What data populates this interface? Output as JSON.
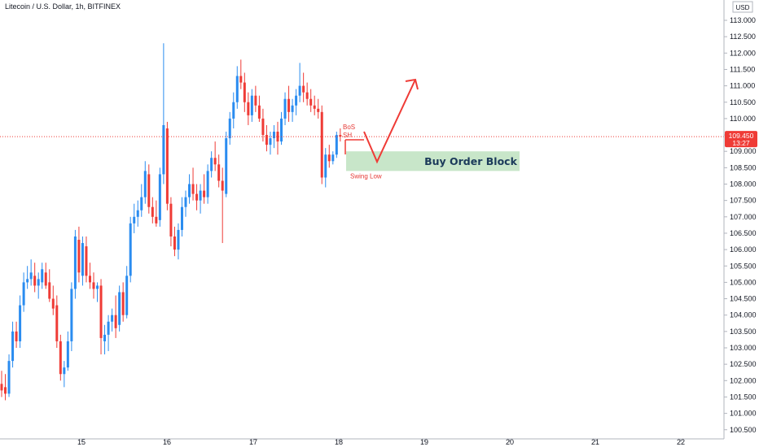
{
  "chart_data": {
    "type": "candlestick",
    "title": "Litecoin / U.S. Dollar, 1h, BITFINEX",
    "currency": "USD",
    "x_ticks": [
      "15",
      "16",
      "17",
      "18",
      "19",
      "20",
      "21",
      "22"
    ],
    "y_ticks": [
      "100.500",
      "101.000",
      "101.500",
      "102.000",
      "102.500",
      "103.000",
      "103.500",
      "104.000",
      "104.500",
      "105.000",
      "105.500",
      "106.000",
      "106.500",
      "107.000",
      "107.500",
      "108.000",
      "108.500",
      "109.000",
      "109.500",
      "110.000",
      "110.500",
      "111.000",
      "111.500",
      "112.000",
      "112.500",
      "113.000"
    ],
    "ylim": [
      100.25,
      113.55
    ],
    "last_price": "109.450",
    "last_price_value": 109.45,
    "countdown": "13:27",
    "colors": {
      "up": "#2a8cf0",
      "down": "#ef3b36",
      "zone": "#c8e6c9",
      "annotation": "#ef3b36",
      "grid": "#b0b4bd"
    },
    "candles": [
      {
        "t": 0,
        "o": 101.9,
        "h": 102.3,
        "l": 101.5,
        "c": 101.7
      },
      {
        "t": 1,
        "o": 101.8,
        "h": 102.2,
        "l": 101.4,
        "c": 101.6
      },
      {
        "t": 2,
        "o": 101.6,
        "h": 102.8,
        "l": 101.5,
        "c": 102.6
      },
      {
        "t": 3,
        "o": 102.6,
        "h": 103.8,
        "l": 102.4,
        "c": 103.5
      },
      {
        "t": 4,
        "o": 103.5,
        "h": 103.8,
        "l": 103.0,
        "c": 103.2
      },
      {
        "t": 5,
        "o": 103.2,
        "h": 104.6,
        "l": 103.0,
        "c": 104.3
      },
      {
        "t": 6,
        "o": 104.3,
        "h": 105.3,
        "l": 104.1,
        "c": 105.0
      },
      {
        "t": 7,
        "o": 105.0,
        "h": 105.5,
        "l": 104.8,
        "c": 105.1
      },
      {
        "t": 8,
        "o": 105.1,
        "h": 105.7,
        "l": 104.9,
        "c": 105.3
      },
      {
        "t": 9,
        "o": 105.2,
        "h": 105.6,
        "l": 104.7,
        "c": 104.9
      },
      {
        "t": 10,
        "o": 104.9,
        "h": 105.3,
        "l": 104.5,
        "c": 105.1
      },
      {
        "t": 11,
        "o": 105.0,
        "h": 105.6,
        "l": 104.8,
        "c": 105.4
      },
      {
        "t": 12,
        "o": 105.3,
        "h": 105.6,
        "l": 104.8,
        "c": 104.9
      },
      {
        "t": 13,
        "o": 105.0,
        "h": 105.4,
        "l": 104.4,
        "c": 104.5
      },
      {
        "t": 14,
        "o": 104.5,
        "h": 104.9,
        "l": 104.0,
        "c": 104.2
      },
      {
        "t": 15,
        "o": 104.3,
        "h": 104.6,
        "l": 103.0,
        "c": 103.2
      },
      {
        "t": 16,
        "o": 103.2,
        "h": 103.4,
        "l": 102.0,
        "c": 102.2
      },
      {
        "t": 17,
        "o": 102.2,
        "h": 102.6,
        "l": 101.8,
        "c": 102.4
      },
      {
        "t": 18,
        "o": 102.4,
        "h": 103.5,
        "l": 102.3,
        "c": 103.2
      },
      {
        "t": 19,
        "o": 103.2,
        "h": 105.0,
        "l": 102.9,
        "c": 104.8
      },
      {
        "t": 20,
        "o": 104.8,
        "h": 106.6,
        "l": 104.5,
        "c": 106.4
      },
      {
        "t": 21,
        "o": 106.3,
        "h": 106.7,
        "l": 105.0,
        "c": 105.3
      },
      {
        "t": 22,
        "o": 105.2,
        "h": 106.4,
        "l": 104.9,
        "c": 106.2
      },
      {
        "t": 23,
        "o": 106.1,
        "h": 106.4,
        "l": 105.0,
        "c": 105.2
      },
      {
        "t": 24,
        "o": 105.2,
        "h": 105.6,
        "l": 104.8,
        "c": 105.0
      },
      {
        "t": 25,
        "o": 105.0,
        "h": 105.3,
        "l": 104.5,
        "c": 104.8
      },
      {
        "t": 26,
        "o": 104.8,
        "h": 105.0,
        "l": 104.4,
        "c": 104.9
      },
      {
        "t": 27,
        "o": 104.9,
        "h": 105.1,
        "l": 102.8,
        "c": 103.3
      },
      {
        "t": 28,
        "o": 103.2,
        "h": 103.7,
        "l": 102.8,
        "c": 103.4
      },
      {
        "t": 29,
        "o": 103.4,
        "h": 104.0,
        "l": 102.9,
        "c": 103.8
      },
      {
        "t": 30,
        "o": 103.8,
        "h": 104.2,
        "l": 103.5,
        "c": 104.0
      },
      {
        "t": 31,
        "o": 104.0,
        "h": 104.6,
        "l": 103.3,
        "c": 103.6
      },
      {
        "t": 32,
        "o": 103.7,
        "h": 104.9,
        "l": 103.5,
        "c": 104.7
      },
      {
        "t": 33,
        "o": 104.7,
        "h": 105.0,
        "l": 103.8,
        "c": 104.0
      },
      {
        "t": 34,
        "o": 104.0,
        "h": 105.5,
        "l": 103.9,
        "c": 105.2
      },
      {
        "t": 35,
        "o": 105.2,
        "h": 107.0,
        "l": 105.0,
        "c": 106.8
      },
      {
        "t": 36,
        "o": 106.8,
        "h": 107.4,
        "l": 106.5,
        "c": 107.0
      },
      {
        "t": 37,
        "o": 107.0,
        "h": 107.5,
        "l": 106.7,
        "c": 107.2
      },
      {
        "t": 38,
        "o": 107.2,
        "h": 108.0,
        "l": 107.0,
        "c": 107.6
      },
      {
        "t": 39,
        "o": 107.6,
        "h": 108.7,
        "l": 107.4,
        "c": 108.4
      },
      {
        "t": 40,
        "o": 108.3,
        "h": 108.6,
        "l": 107.1,
        "c": 107.3
      },
      {
        "t": 41,
        "o": 107.3,
        "h": 107.6,
        "l": 106.8,
        "c": 107.0
      },
      {
        "t": 42,
        "o": 107.0,
        "h": 107.5,
        "l": 106.7,
        "c": 106.8
      },
      {
        "t": 43,
        "o": 106.9,
        "h": 108.5,
        "l": 106.7,
        "c": 108.3
      },
      {
        "t": 44,
        "o": 108.3,
        "h": 112.3,
        "l": 108.0,
        "c": 109.8
      },
      {
        "t": 45,
        "o": 109.7,
        "h": 109.9,
        "l": 107.2,
        "c": 107.4
      },
      {
        "t": 46,
        "o": 107.4,
        "h": 107.6,
        "l": 106.1,
        "c": 106.4
      },
      {
        "t": 47,
        "o": 106.4,
        "h": 106.7,
        "l": 105.8,
        "c": 106.0
      },
      {
        "t": 48,
        "o": 106.0,
        "h": 106.8,
        "l": 105.7,
        "c": 106.6
      },
      {
        "t": 49,
        "o": 106.6,
        "h": 107.6,
        "l": 106.4,
        "c": 107.3
      },
      {
        "t": 50,
        "o": 107.3,
        "h": 107.8,
        "l": 107.0,
        "c": 107.6
      },
      {
        "t": 51,
        "o": 107.6,
        "h": 108.3,
        "l": 107.4,
        "c": 108.0
      },
      {
        "t": 52,
        "o": 108.0,
        "h": 108.5,
        "l": 107.5,
        "c": 107.7
      },
      {
        "t": 53,
        "o": 107.7,
        "h": 108.0,
        "l": 107.2,
        "c": 107.5
      },
      {
        "t": 54,
        "o": 107.5,
        "h": 108.0,
        "l": 107.1,
        "c": 107.8
      },
      {
        "t": 55,
        "o": 107.8,
        "h": 108.3,
        "l": 107.4,
        "c": 107.6
      },
      {
        "t": 56,
        "o": 107.6,
        "h": 108.6,
        "l": 107.4,
        "c": 108.4
      },
      {
        "t": 57,
        "o": 108.4,
        "h": 109.0,
        "l": 108.2,
        "c": 108.8
      },
      {
        "t": 58,
        "o": 108.8,
        "h": 109.3,
        "l": 108.4,
        "c": 108.6
      },
      {
        "t": 59,
        "o": 108.6,
        "h": 108.9,
        "l": 107.9,
        "c": 108.1
      },
      {
        "t": 60,
        "o": 108.1,
        "h": 108.5,
        "l": 106.2,
        "c": 107.8
      },
      {
        "t": 61,
        "o": 107.7,
        "h": 109.6,
        "l": 107.6,
        "c": 109.4
      },
      {
        "t": 62,
        "o": 109.4,
        "h": 110.2,
        "l": 109.2,
        "c": 110.0
      },
      {
        "t": 63,
        "o": 110.0,
        "h": 110.8,
        "l": 109.7,
        "c": 110.5
      },
      {
        "t": 64,
        "o": 110.5,
        "h": 111.6,
        "l": 110.3,
        "c": 111.3
      },
      {
        "t": 65,
        "o": 111.3,
        "h": 111.8,
        "l": 110.9,
        "c": 111.1
      },
      {
        "t": 66,
        "o": 111.1,
        "h": 111.4,
        "l": 110.2,
        "c": 110.5
      },
      {
        "t": 67,
        "o": 110.5,
        "h": 110.8,
        "l": 109.8,
        "c": 110.1
      },
      {
        "t": 68,
        "o": 110.1,
        "h": 110.9,
        "l": 109.9,
        "c": 110.7
      },
      {
        "t": 69,
        "o": 110.7,
        "h": 111.0,
        "l": 110.2,
        "c": 110.4
      },
      {
        "t": 70,
        "o": 110.4,
        "h": 110.7,
        "l": 109.9,
        "c": 110.0
      },
      {
        "t": 71,
        "o": 110.0,
        "h": 110.3,
        "l": 109.3,
        "c": 109.5
      },
      {
        "t": 72,
        "o": 109.5,
        "h": 109.8,
        "l": 109.0,
        "c": 109.2
      },
      {
        "t": 73,
        "o": 109.2,
        "h": 109.6,
        "l": 108.9,
        "c": 109.4
      },
      {
        "t": 74,
        "o": 109.4,
        "h": 109.8,
        "l": 109.1,
        "c": 109.6
      },
      {
        "t": 75,
        "o": 109.6,
        "h": 109.9,
        "l": 108.9,
        "c": 109.3
      },
      {
        "t": 76,
        "o": 109.3,
        "h": 110.2,
        "l": 109.2,
        "c": 110.0
      },
      {
        "t": 77,
        "o": 110.0,
        "h": 110.8,
        "l": 109.8,
        "c": 110.6
      },
      {
        "t": 78,
        "o": 110.6,
        "h": 111.0,
        "l": 109.9,
        "c": 110.2
      },
      {
        "t": 79,
        "o": 110.2,
        "h": 110.6,
        "l": 109.9,
        "c": 110.4
      },
      {
        "t": 80,
        "o": 110.4,
        "h": 110.9,
        "l": 110.1,
        "c": 110.7
      },
      {
        "t": 81,
        "o": 110.7,
        "h": 111.7,
        "l": 110.5,
        "c": 111.0
      },
      {
        "t": 82,
        "o": 111.0,
        "h": 111.4,
        "l": 110.5,
        "c": 110.8
      },
      {
        "t": 83,
        "o": 110.8,
        "h": 111.1,
        "l": 110.4,
        "c": 110.6
      },
      {
        "t": 84,
        "o": 110.6,
        "h": 110.9,
        "l": 110.2,
        "c": 110.4
      },
      {
        "t": 85,
        "o": 110.4,
        "h": 110.7,
        "l": 110.1,
        "c": 110.3
      },
      {
        "t": 86,
        "o": 110.3,
        "h": 110.6,
        "l": 110.0,
        "c": 110.2
      },
      {
        "t": 87,
        "o": 110.2,
        "h": 110.4,
        "l": 108.0,
        "c": 108.2
      },
      {
        "t": 88,
        "o": 108.2,
        "h": 109.1,
        "l": 107.9,
        "c": 108.9
      },
      {
        "t": 89,
        "o": 108.9,
        "h": 109.2,
        "l": 108.5,
        "c": 108.7
      },
      {
        "t": 90,
        "o": 108.7,
        "h": 109.0,
        "l": 108.6,
        "c": 108.9
      },
      {
        "t": 91,
        "o": 108.9,
        "h": 109.6,
        "l": 108.8,
        "c": 109.5
      },
      {
        "t": 92,
        "o": 109.5,
        "h": 109.7,
        "l": 109.3,
        "c": 109.45
      }
    ],
    "annotations": {
      "zone_label": "Buy Order Block",
      "zone_top": 109.0,
      "zone_bottom": 108.4,
      "bos_label": "BoS",
      "sh_label": "SH",
      "swing_low_label": "Swing Low",
      "bos_level": 109.7,
      "projection": [
        [
          92,
          109.7
        ],
        [
          96,
          108.7
        ],
        [
          105,
          111.3
        ]
      ]
    }
  }
}
